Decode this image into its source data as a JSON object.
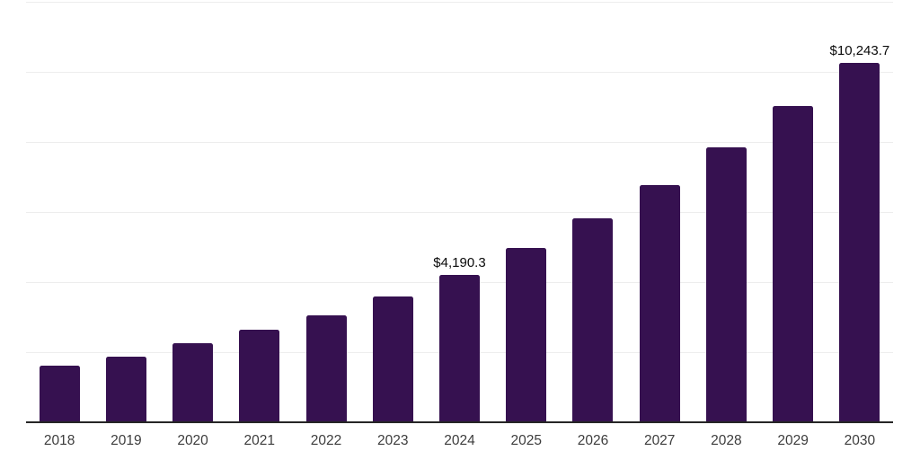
{
  "chart_data": {
    "type": "bar",
    "title": "",
    "xlabel": "",
    "ylabel": "",
    "categories": [
      "2018",
      "2019",
      "2020",
      "2021",
      "2022",
      "2023",
      "2024",
      "2025",
      "2026",
      "2027",
      "2028",
      "2029",
      "2030"
    ],
    "values": [
      1595,
      1840,
      2230,
      2610,
      3030,
      3565,
      4190.3,
      4955,
      5785,
      6745,
      7820,
      9000,
      10243.7
    ],
    "data_labels": [
      "",
      "",
      "",
      "",
      "",
      "",
      "$4,190.3",
      "",
      "",
      "",
      "",
      "",
      "$10,243.7"
    ],
    "ylim": [
      0,
      12000
    ],
    "gridline_step": 2000,
    "grid": "horizontal",
    "legend": "none",
    "colors": {
      "bar": "#361150",
      "axis_line": "#262626",
      "gridline": "#ededed",
      "tick_label": "#3d3d3d",
      "data_label": "#0a0a0a",
      "background": "#ffffff"
    }
  }
}
